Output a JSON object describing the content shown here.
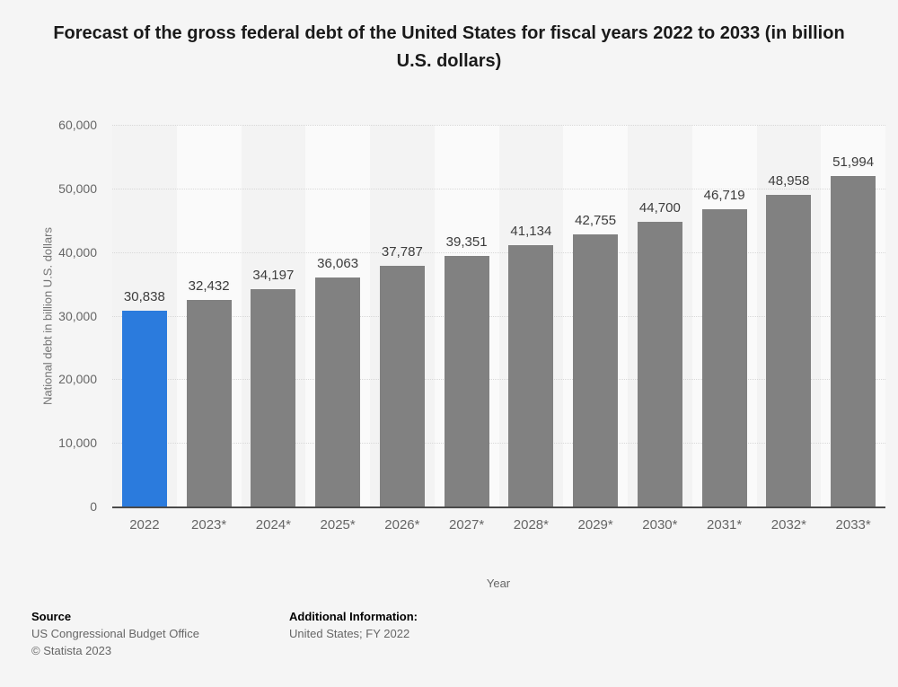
{
  "chart_data": {
    "type": "bar",
    "title": "Forecast of the gross federal debt of the United States for fiscal years 2022 to 2033 (in billion U.S. dollars)",
    "categories": [
      "2022",
      "2023*",
      "2024*",
      "2025*",
      "2026*",
      "2027*",
      "2028*",
      "2029*",
      "2030*",
      "2031*",
      "2032*",
      "2033*"
    ],
    "values": [
      30838,
      32432,
      34197,
      36063,
      37787,
      39351,
      41134,
      42755,
      44700,
      46719,
      48958,
      51994
    ],
    "value_labels": [
      "30,838",
      "32,432",
      "34,197",
      "36,063",
      "37,787",
      "39,351",
      "41,134",
      "42,755",
      "44,700",
      "46,719",
      "48,958",
      "51,994"
    ],
    "xlabel": "Year",
    "ylabel": "National debt in billion U.S. dollars",
    "ylim": [
      0,
      60000
    ],
    "ytick_step": 10000,
    "ytick_labels": [
      "60,000",
      "50,000",
      "40,000",
      "30,000",
      "20,000",
      "10,000",
      "0"
    ],
    "grid": "horizontal-dotted",
    "legend": "none",
    "highlight_index": 0,
    "colors": {
      "highlight_bar": "#2b7bdd",
      "default_bar": "#818181",
      "stripe_even": "#f3f3f3",
      "stripe_odd": "#fafafa",
      "gridline": "#d8d8d8",
      "axis_line": "#4a4a4a"
    }
  },
  "footer": {
    "source_label": "Source",
    "source_lines": [
      "US Congressional Budget Office",
      "© Statista 2023"
    ],
    "additional_label": "Additional Information:",
    "additional_lines": [
      "United States; FY 2022"
    ]
  }
}
